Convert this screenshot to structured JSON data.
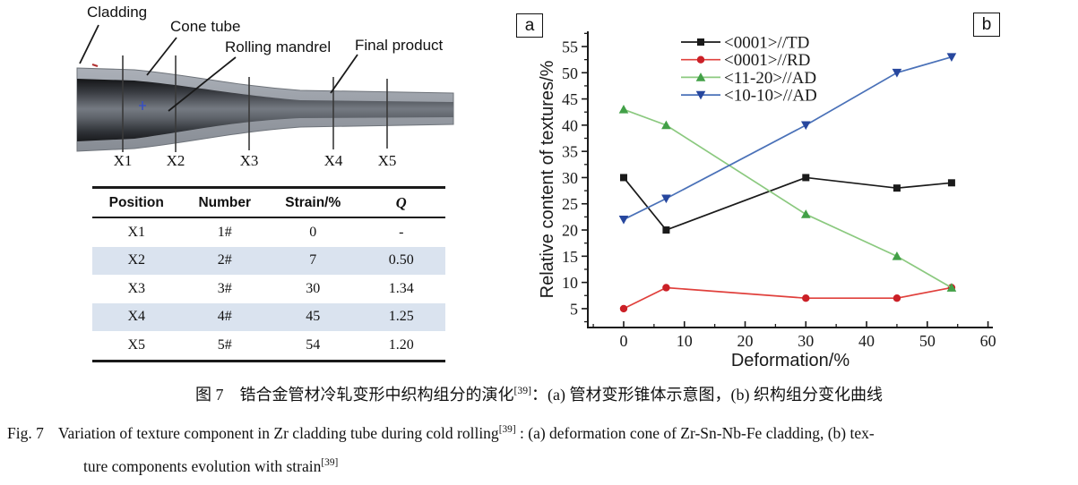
{
  "panel_a": {
    "tag": "a",
    "annotations": {
      "cladding": "Cladding",
      "cone_tube": "Cone tube",
      "rolling_mandrel": "Rolling mandrel",
      "final_product": "Final product"
    },
    "position_marks": [
      "X1",
      "X2",
      "X3",
      "X4",
      "X5"
    ],
    "table": {
      "headers": [
        "Position",
        "Number",
        "Strain/%",
        "Q"
      ],
      "rows": [
        [
          "X1",
          "1#",
          "0",
          "-"
        ],
        [
          "X2",
          "2#",
          "7",
          "0.50"
        ],
        [
          "X3",
          "3#",
          "30",
          "1.34"
        ],
        [
          "X4",
          "4#",
          "45",
          "1.25"
        ],
        [
          "X5",
          "5#",
          "54",
          "1.20"
        ]
      ],
      "stripe_color": "#dae3ef"
    }
  },
  "panel_b": {
    "tag": "b"
  },
  "chart_data": {
    "type": "line",
    "title": "",
    "xlabel": "Deformation/%",
    "ylabel": "Relative content of textures/%",
    "x": [
      0,
      7,
      30,
      45,
      54
    ],
    "series": [
      {
        "name": "<0001>//TD",
        "marker": "square",
        "line_color": "#1a1a1a",
        "marker_color": "#1a1a1a",
        "values": [
          30,
          20,
          30,
          28,
          29
        ]
      },
      {
        "name": "<0001>//RD",
        "marker": "circle",
        "line_color": "#e0403c",
        "marker_color": "#cb2027",
        "values": [
          5,
          9,
          7,
          7,
          9
        ]
      },
      {
        "name": "<11-20>//AD",
        "marker": "triangle-up",
        "line_color": "#8bc97f",
        "marker_color": "#42a047",
        "values": [
          43,
          40,
          23,
          15,
          9
        ]
      },
      {
        "name": "<10-10>//AD",
        "marker": "triangle-down",
        "line_color": "#4a71b8",
        "marker_color": "#27479e",
        "values": [
          22,
          26,
          40,
          50,
          53
        ]
      }
    ],
    "xticks": [
      0,
      10,
      20,
      30,
      40,
      50,
      60
    ],
    "yticks": [
      5,
      10,
      15,
      20,
      25,
      30,
      35,
      40,
      45,
      50,
      55
    ],
    "xlim": [
      -5.9,
      60.8
    ],
    "ylim": [
      1.4,
      57.9
    ],
    "grid": false,
    "legend_position": "upper-center-inside"
  },
  "caption": {
    "cn": {
      "part1": "图 7　锆合金管材冷轧变形中织构组分的演化",
      "sup": "[39]",
      "part2": "：(a) 管材变形锥体示意图，(b) 织构组分变化曲线"
    },
    "en": {
      "fig": "Fig. 7",
      "part1": "Variation of texture component in Zr cladding tube during cold rolling",
      "sup1": "[39]",
      "part2": " : (a) deformation cone of Zr-Sn-Nb-Fe cladding, (b) tex-",
      "line2": "ture components evolution with strain",
      "sup2": "[39]"
    }
  }
}
